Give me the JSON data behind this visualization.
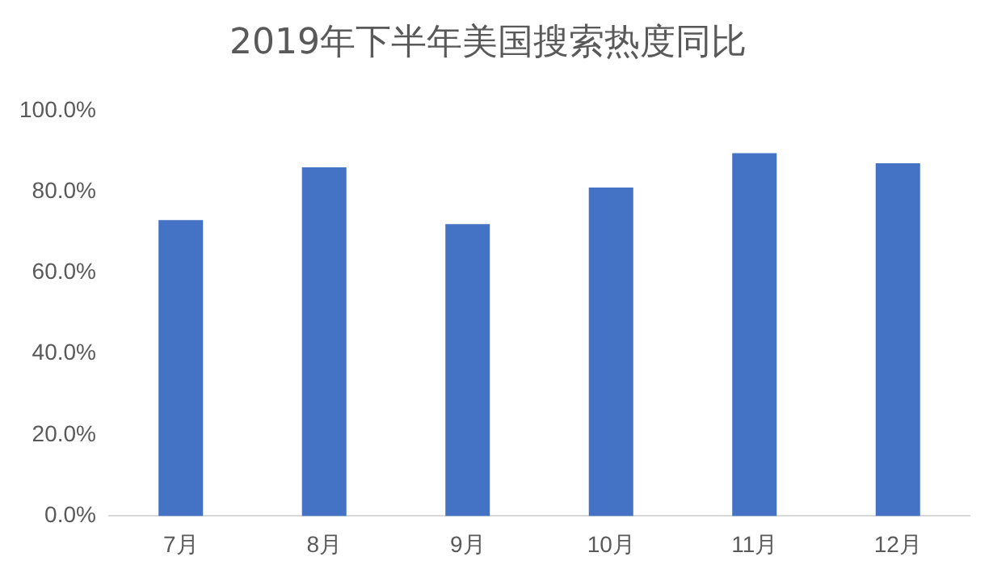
{
  "chart_data": {
    "type": "bar",
    "title": "2019年下半年美国搜索热度同比",
    "categories": [
      "7月",
      "8月",
      "9月",
      "10月",
      "11月",
      "12月"
    ],
    "values": [
      73,
      86,
      72,
      81,
      89.5,
      87
    ],
    "color": "#4472c4",
    "ylim": [
      0,
      100
    ],
    "yticks": [
      {
        "value": 0,
        "label": "0.0%"
      },
      {
        "value": 20,
        "label": "20.0%"
      },
      {
        "value": 40,
        "label": "40.0%"
      },
      {
        "value": 60,
        "label": "60.0%"
      },
      {
        "value": 80,
        "label": "80.0%"
      },
      {
        "value": 100,
        "label": "100.0%"
      }
    ],
    "grid": false,
    "legend": false
  }
}
